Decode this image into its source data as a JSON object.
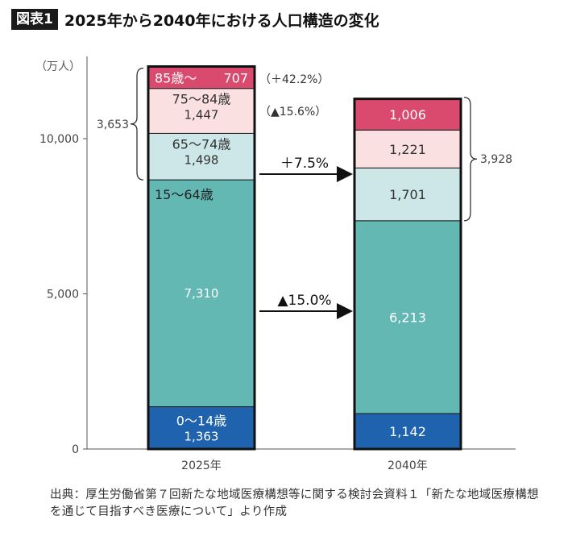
{
  "header": {
    "badge": "図表1",
    "title": "2025年から2040年における人口構造の変化"
  },
  "chart_data": {
    "type": "bar",
    "stacked": true,
    "title": "2025年から2040年における人口構造の変化",
    "yunit": "（万人）",
    "ylim": [
      0,
      11500
    ],
    "yticks": [
      0,
      5000,
      10000
    ],
    "ytick_labels": [
      "0",
      "5,000",
      "10,000"
    ],
    "categories": [
      "2025年",
      "2040年"
    ],
    "series": [
      {
        "name": "0〜14歳",
        "values": [
          1363,
          1142
        ],
        "color": "#1f62ad",
        "labels": [
          "1,363",
          "1,142"
        ],
        "text_color": "#ffffff"
      },
      {
        "name": "15〜64歳",
        "values": [
          7310,
          6213
        ],
        "color": "#63b8b4",
        "labels": [
          "7,310",
          "6,213"
        ],
        "text_color": "#ffffff"
      },
      {
        "name": "65〜74歳",
        "values": [
          1498,
          1701
        ],
        "color": "#cde7e8",
        "labels": [
          "1,498",
          "1,701"
        ],
        "text_color": "#333333"
      },
      {
        "name": "75〜84歳",
        "values": [
          1447,
          1221
        ],
        "color": "#fbe0e2",
        "labels": [
          "1,447",
          "1,221"
        ],
        "text_color": "#333333"
      },
      {
        "name": "85歳〜",
        "values": [
          707,
          1006
        ],
        "color": "#d94a6e",
        "labels": [
          "707",
          "1,006"
        ],
        "text_color": "#ffffff"
      }
    ],
    "annotations": {
      "change_85": "（＋42.2%）",
      "change_75_84": "（▲15.6%）",
      "change_65plus": "＋7.5%",
      "change_15_64": "▲15.0%",
      "total_65plus_2025": "3,653",
      "total_65plus_2040": "3,928"
    }
  },
  "source": "出典：厚生労働省第７回新たな地域医療構想等に関する検討会資料１「新たな地域医療構想を通じて目指すべき医療について」より作成"
}
